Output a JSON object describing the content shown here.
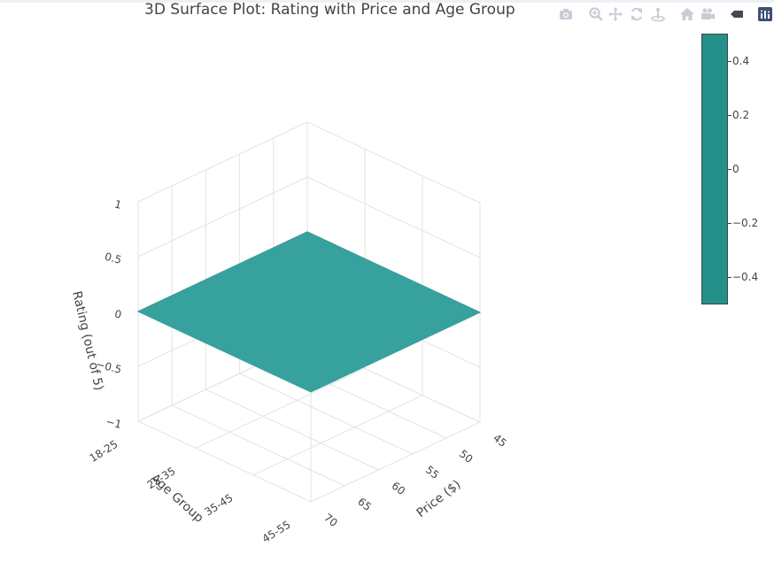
{
  "title": "3D Surface Plot: Rating with Price and Age Group",
  "toolbar": {
    "items": [
      {
        "name": "camera-icon"
      },
      {
        "name": "zoom-icon"
      },
      {
        "name": "pan-icon"
      },
      {
        "name": "orbit-icon"
      },
      {
        "name": "turntable-icon"
      },
      {
        "name": "home-icon"
      },
      {
        "name": "video-camera-icon"
      },
      {
        "name": "hover-tag-icon"
      },
      {
        "name": "plotly-logo-icon"
      }
    ]
  },
  "chart_data": {
    "type": "surface",
    "title": "3D Surface Plot: Rating with Price and Age Group",
    "xlabel": "Age Group",
    "ylabel": "Price ($)",
    "zlabel": "Rating (out of 5)",
    "x_ticks": [
      "18-25",
      "25-35",
      "35-45",
      "45-55"
    ],
    "y_ticks": [
      "45",
      "50",
      "55",
      "60",
      "65",
      "70"
    ],
    "z_ticks": [
      "−1",
      "−0.5",
      "0",
      "0.5",
      "1"
    ],
    "zlim": [
      -1,
      1
    ],
    "surface_z": 0,
    "surface_color": "#36a19d",
    "colorbar": {
      "color": "#23918a",
      "ticks": [
        "0.4",
        "0.2",
        "0",
        "−0.2",
        "−0.4"
      ],
      "range": [
        -0.5,
        0.5
      ]
    }
  }
}
